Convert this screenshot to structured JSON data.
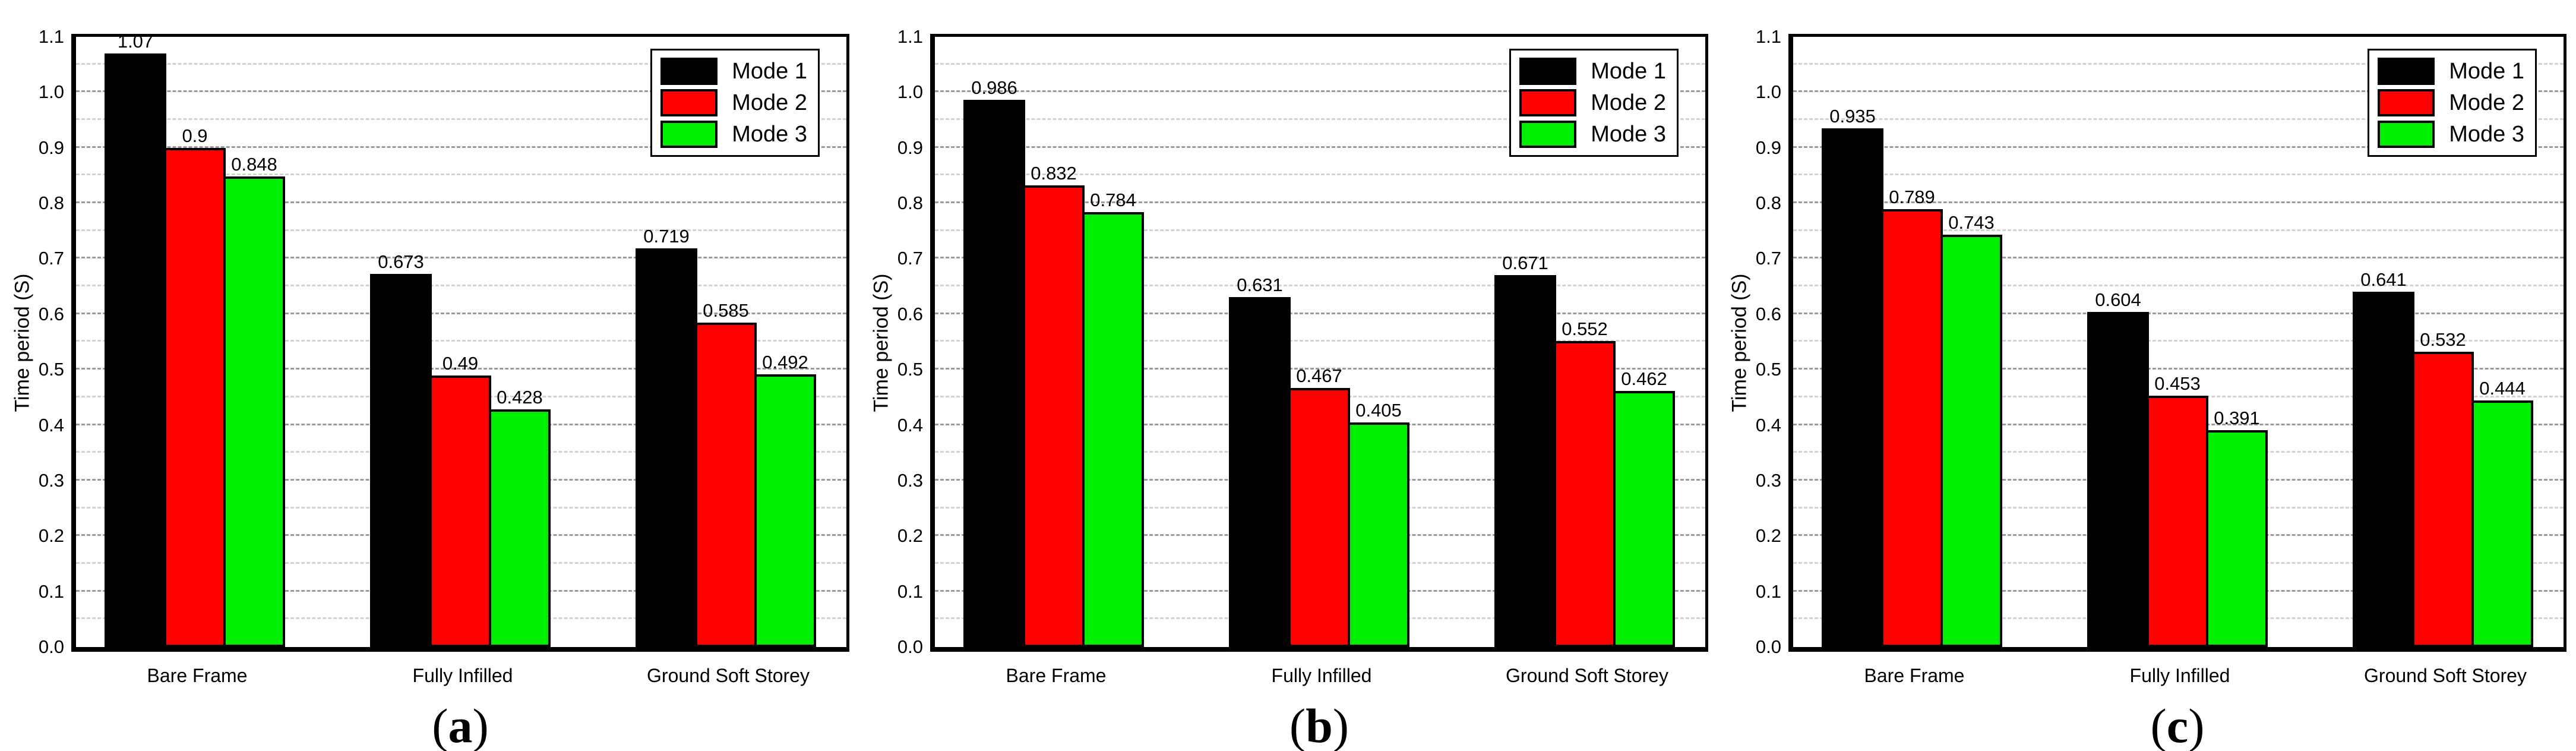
{
  "figure": {
    "ylabel": "Time period (S)",
    "yticks": [
      "1.1",
      "1.0",
      "0.9",
      "0.8",
      "0.7",
      "0.6",
      "0.5",
      "0.4",
      "0.3",
      "0.2",
      "0.1",
      "0.0"
    ],
    "categories": [
      "Bare Frame",
      "Fully Infilled",
      "Ground Soft Storey"
    ],
    "legend": [
      {
        "label": "Mode 1",
        "color": "#000000"
      },
      {
        "label": "Mode 2",
        "color": "#FF0000"
      },
      {
        "label": "Mode 3",
        "color": "#00EE00"
      }
    ],
    "colors": {
      "mode1": "#000000",
      "mode2": "#FF0000",
      "mode3": "#00EE00",
      "grid_major": "#9a9a9a",
      "grid_minor": "#d2d2d2"
    }
  },
  "chart_data": [
    {
      "type": "bar",
      "caption": "(a)",
      "caption_letter": "a",
      "title": "",
      "xlabel": "",
      "ylabel": "Time period (S)",
      "ylim": [
        0.0,
        1.1
      ],
      "grid": true,
      "legend_position": "top-right",
      "categories": [
        "Bare Frame",
        "Fully Infilled",
        "Ground Soft Storey"
      ],
      "series": [
        {
          "name": "Mode 1",
          "color": "#000000",
          "values": [
            1.07,
            0.673,
            0.719
          ],
          "labels": [
            "1.07",
            "0.673",
            "0.719"
          ]
        },
        {
          "name": "Mode 2",
          "color": "#FF0000",
          "values": [
            0.9,
            0.49,
            0.585
          ],
          "labels": [
            "0.9",
            "0.49",
            "0.585"
          ]
        },
        {
          "name": "Mode 3",
          "color": "#00EE00",
          "values": [
            0.848,
            0.428,
            0.492
          ],
          "labels": [
            "0.848",
            "0.428",
            "0.492"
          ]
        }
      ]
    },
    {
      "type": "bar",
      "caption": "(b)",
      "caption_letter": "b",
      "title": "",
      "xlabel": "",
      "ylabel": "Time period (S)",
      "ylim": [
        0.0,
        1.1
      ],
      "grid": true,
      "legend_position": "top-right",
      "categories": [
        "Bare Frame",
        "Fully Infilled",
        "Ground Soft Storey"
      ],
      "series": [
        {
          "name": "Mode 1",
          "color": "#000000",
          "values": [
            0.986,
            0.631,
            0.671
          ],
          "labels": [
            "0.986",
            "0.631",
            "0.671"
          ]
        },
        {
          "name": "Mode 2",
          "color": "#FF0000",
          "values": [
            0.832,
            0.467,
            0.552
          ],
          "labels": [
            "0.832",
            "0.467",
            "0.552"
          ]
        },
        {
          "name": "Mode 3",
          "color": "#00EE00",
          "values": [
            0.784,
            0.405,
            0.462
          ],
          "labels": [
            "0.784",
            "0.405",
            "0.462"
          ]
        }
      ]
    },
    {
      "type": "bar",
      "caption": "(c)",
      "caption_letter": "c",
      "title": "",
      "xlabel": "",
      "ylabel": "Time period (S)",
      "ylim": [
        0.0,
        1.1
      ],
      "grid": true,
      "legend_position": "top-right",
      "categories": [
        "Bare Frame",
        "Fully Infilled",
        "Ground Soft Storey"
      ],
      "series": [
        {
          "name": "Mode 1",
          "color": "#000000",
          "values": [
            0.935,
            0.604,
            0.641
          ],
          "labels": [
            "0.935",
            "0.604",
            "0.641"
          ]
        },
        {
          "name": "Mode 2",
          "color": "#FF0000",
          "values": [
            0.789,
            0.453,
            0.532
          ],
          "labels": [
            "0.789",
            "0.453",
            "0.532"
          ]
        },
        {
          "name": "Mode 3",
          "color": "#00EE00",
          "values": [
            0.743,
            0.391,
            0.444
          ],
          "labels": [
            "0.743",
            "0.391",
            "0.444"
          ]
        }
      ]
    }
  ]
}
